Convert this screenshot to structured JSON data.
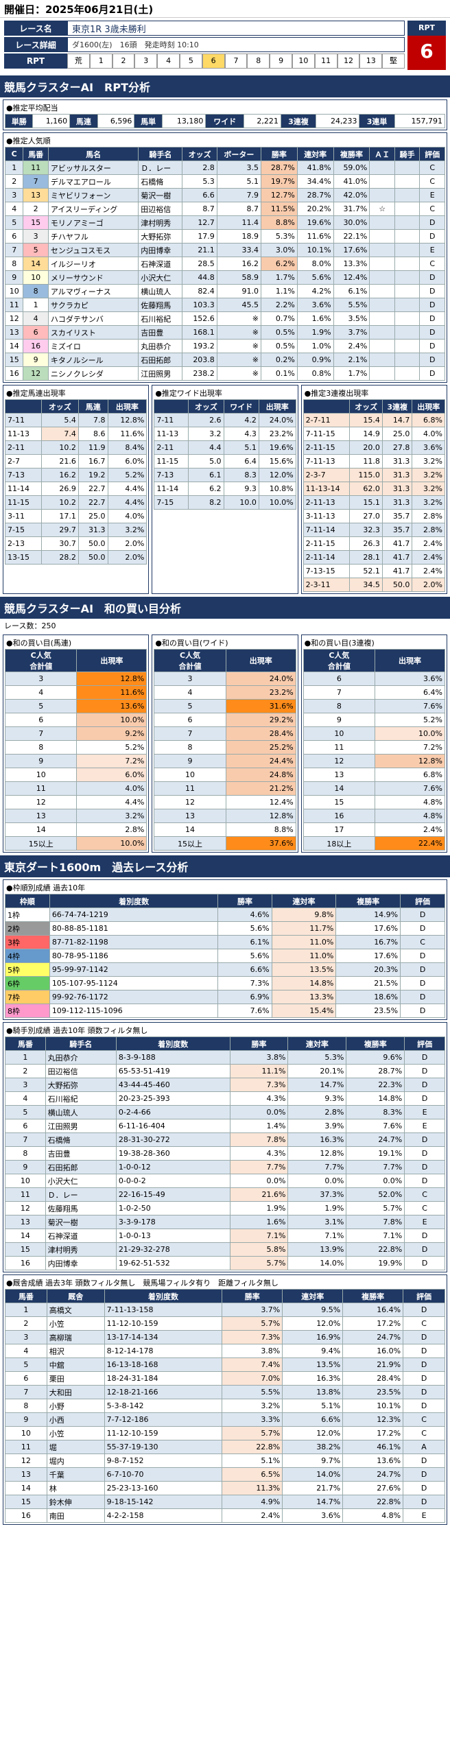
{
  "date": "開催日：2025年06月21日(土)",
  "race": {
    "name_label": "レース名",
    "name": "東京1R 3歳未勝利",
    "detail_label": "レース詳細",
    "detail": "ダ1600(左)　16頭　発走時刻 10:10",
    "rpt_label": "RPT",
    "rpt_cells": [
      "荒",
      "1",
      "2",
      "3",
      "4",
      "5",
      "6",
      "7",
      "8",
      "9",
      "10",
      "11",
      "12",
      "13",
      "堅"
    ],
    "rpt_active": 6,
    "rpt_box_title": "RPT",
    "rpt_value": "6"
  },
  "sec1": "競馬クラスターAI　RPT分析",
  "payout": {
    "title": "●推定平均配当",
    "items": [
      [
        "単勝",
        "1,160"
      ],
      [
        "馬連",
        "6,596"
      ],
      [
        "馬単",
        "13,180"
      ],
      [
        "ワイド",
        "2,221"
      ],
      [
        "3連複",
        "24,233"
      ],
      [
        "3連単",
        "157,791"
      ]
    ]
  },
  "pop": {
    "title": "●推定人気順",
    "headers": [
      "C",
      "馬番",
      "馬名",
      "騎手名",
      "オッズ",
      "ボーター",
      "勝率",
      "連対率",
      "複勝率",
      "ＡＩ",
      "騎手",
      "評価"
    ],
    "rows": [
      [
        "1",
        "11",
        "アビッサルスター",
        "Ｄ．レー",
        "2.8",
        "3.5",
        "28.7%",
        "41.8%",
        "59.0%",
        "",
        "",
        "C"
      ],
      [
        "2",
        "7",
        "デルマエアロール",
        "石橋脩",
        "5.3",
        "5.1",
        "19.7%",
        "34.4%",
        "41.0%",
        "",
        "",
        "C"
      ],
      [
        "3",
        "13",
        "ミヤビリフォーン",
        "菊沢一樹",
        "6.6",
        "7.9",
        "12.7%",
        "28.7%",
        "42.0%",
        "",
        "",
        "E"
      ],
      [
        "4",
        "2",
        "アイスリーディング",
        "田辺裕信",
        "8.7",
        "8.7",
        "11.5%",
        "20.2%",
        "31.7%",
        "☆",
        "",
        "C"
      ],
      [
        "5",
        "15",
        "モリノアミーゴ",
        "津村明秀",
        "12.7",
        "11.4",
        "8.8%",
        "19.6%",
        "30.0%",
        "",
        "",
        "D"
      ],
      [
        "6",
        "3",
        "チハヤフル",
        "大野拓弥",
        "17.9",
        "18.9",
        "5.3%",
        "11.6%",
        "22.1%",
        "",
        "",
        "D"
      ],
      [
        "7",
        "5",
        "センジュコスモス",
        "内田博幸",
        "21.1",
        "33.4",
        "3.0%",
        "10.1%",
        "17.6%",
        "",
        "",
        "E"
      ],
      [
        "8",
        "14",
        "イルジーリオ",
        "石神深道",
        "28.5",
        "16.2",
        "6.2%",
        "8.0%",
        "13.3%",
        "",
        "",
        "C"
      ],
      [
        "9",
        "10",
        "メリーサウンド",
        "小沢大仁",
        "44.8",
        "58.9",
        "1.7%",
        "5.6%",
        "12.4%",
        "",
        "",
        "D"
      ],
      [
        "10",
        "8",
        "アルマヴィーナス",
        "横山琉人",
        "82.4",
        "91.0",
        "1.1%",
        "4.2%",
        "6.1%",
        "",
        "",
        "D"
      ],
      [
        "11",
        "1",
        "サクラカピ",
        "佐藤翔馬",
        "103.3",
        "45.5",
        "2.2%",
        "3.6%",
        "5.5%",
        "",
        "",
        "D"
      ],
      [
        "12",
        "4",
        "ハコダテサンバ",
        "石川裕紀",
        "152.6",
        "※",
        "0.7%",
        "1.6%",
        "3.5%",
        "",
        "",
        "D"
      ],
      [
        "13",
        "6",
        "スカイリスト",
        "吉田豊",
        "168.1",
        "※",
        "0.5%",
        "1.9%",
        "3.7%",
        "",
        "",
        "D"
      ],
      [
        "14",
        "16",
        "ミズイロ",
        "丸田恭介",
        "193.2",
        "※",
        "0.5%",
        "1.0%",
        "2.4%",
        "",
        "",
        "D"
      ],
      [
        "15",
        "9",
        "キタノルシール",
        "石田拓郎",
        "203.8",
        "※",
        "0.2%",
        "0.9%",
        "2.1%",
        "",
        "",
        "D"
      ],
      [
        "16",
        "12",
        "ニシノクレシダ",
        "江田照男",
        "238.2",
        "※",
        "0.1%",
        "0.8%",
        "1.7%",
        "",
        "",
        "D"
      ]
    ]
  },
  "umaren": {
    "title": "●推定馬連出現率",
    "rows": [
      [
        "7-11",
        "5.4",
        "7.8",
        "12.8%"
      ],
      [
        "11-13",
        "7.4",
        "8.6",
        "11.6%"
      ],
      [
        "2-11",
        "10.2",
        "11.9",
        "8.4%"
      ],
      [
        "2-7",
        "21.6",
        "16.7",
        "6.0%"
      ],
      [
        "7-13",
        "16.2",
        "19.2",
        "5.2%"
      ],
      [
        "11-14",
        "26.9",
        "22.7",
        "4.4%"
      ],
      [
        "11-15",
        "10.2",
        "22.7",
        "4.4%"
      ],
      [
        "3-11",
        "17.1",
        "25.0",
        "4.0%"
      ],
      [
        "7-15",
        "29.7",
        "31.3",
        "3.2%"
      ],
      [
        "2-13",
        "30.7",
        "50.0",
        "2.0%"
      ],
      [
        "13-15",
        "28.2",
        "50.0",
        "2.0%"
      ]
    ]
  },
  "wide": {
    "title": "●推定ワイド出現率",
    "rows": [
      [
        "7-11",
        "2.6",
        "4.2",
        "24.0%"
      ],
      [
        "11-13",
        "3.2",
        "4.3",
        "23.2%"
      ],
      [
        "2-11",
        "4.4",
        "5.1",
        "19.6%"
      ],
      [
        "11-15",
        "5.0",
        "6.4",
        "15.6%"
      ],
      [
        "7-13",
        "6.1",
        "8.3",
        "12.0%"
      ],
      [
        "11-14",
        "6.2",
        "9.3",
        "10.8%"
      ],
      [
        "7-15",
        "8.2",
        "10.0",
        "10.0%"
      ]
    ]
  },
  "sanren": {
    "title": "●推定3連複出現率",
    "rows": [
      [
        "2-7-11",
        "15.4",
        "14.7",
        "6.8%"
      ],
      [
        "7-11-15",
        "14.9",
        "25.0",
        "4.0%"
      ],
      [
        "2-11-15",
        "20.0",
        "27.8",
        "3.6%"
      ],
      [
        "7-11-13",
        "11.8",
        "31.3",
        "3.2%"
      ],
      [
        "2-3-7",
        "115.0",
        "31.3",
        "3.2%"
      ],
      [
        "11-13-14",
        "62.0",
        "31.3",
        "3.2%"
      ],
      [
        "2-11-13",
        "15.1",
        "31.3",
        "3.2%"
      ],
      [
        "3-11-13",
        "27.0",
        "35.7",
        "2.8%"
      ],
      [
        "7-11-14",
        "32.3",
        "35.7",
        "2.8%"
      ],
      [
        "2-11-15",
        "26.3",
        "41.7",
        "2.4%"
      ],
      [
        "2-11-14",
        "28.1",
        "41.7",
        "2.4%"
      ],
      [
        "7-13-15",
        "52.1",
        "41.7",
        "2.4%"
      ],
      [
        "2-3-11",
        "34.5",
        "50.0",
        "2.0%"
      ]
    ]
  },
  "sec2": "競馬クラスターAI　和の買い目分析",
  "race_count": "レース数：250",
  "wa": {
    "h1": "C人気\n合計値",
    "h2": "出現率",
    "umaren": {
      "title": "●和の買い目(馬連)",
      "rows": [
        [
          "3",
          "12.8%"
        ],
        [
          "4",
          "11.6%"
        ],
        [
          "5",
          "13.6%"
        ],
        [
          "6",
          "10.0%"
        ],
        [
          "7",
          "9.2%"
        ],
        [
          "8",
          "5.2%"
        ],
        [
          "9",
          "7.2%"
        ],
        [
          "10",
          "6.0%"
        ],
        [
          "11",
          "4.0%"
        ],
        [
          "12",
          "4.4%"
        ],
        [
          "13",
          "3.2%"
        ],
        [
          "14",
          "2.8%"
        ],
        [
          "15以上",
          "10.0%"
        ]
      ]
    },
    "wide": {
      "title": "●和の買い目(ワイド)",
      "rows": [
        [
          "3",
          "24.0%"
        ],
        [
          "4",
          "23.2%"
        ],
        [
          "5",
          "31.6%"
        ],
        [
          "6",
          "29.2%"
        ],
        [
          "7",
          "28.4%"
        ],
        [
          "8",
          "25.2%"
        ],
        [
          "9",
          "24.4%"
        ],
        [
          "10",
          "24.8%"
        ],
        [
          "11",
          "21.2%"
        ],
        [
          "12",
          "12.4%"
        ],
        [
          "13",
          "12.8%"
        ],
        [
          "14",
          "8.8%"
        ],
        [
          "15以上",
          "37.6%"
        ]
      ]
    },
    "sanren": {
      "title": "●和の買い目(3連複)",
      "rows": [
        [
          "6",
          "3.6%"
        ],
        [
          "7",
          "6.4%"
        ],
        [
          "8",
          "7.6%"
        ],
        [
          "9",
          "5.2%"
        ],
        [
          "10",
          "10.0%"
        ],
        [
          "11",
          "7.2%"
        ],
        [
          "12",
          "12.8%"
        ],
        [
          "13",
          "6.8%"
        ],
        [
          "14",
          "7.6%"
        ],
        [
          "15",
          "4.8%"
        ],
        [
          "16",
          "4.8%"
        ],
        [
          "17",
          "2.4%"
        ],
        [
          "18以上",
          "22.4%"
        ]
      ]
    }
  },
  "sec3": "東京ダート1600m　過去レース分析",
  "waku": {
    "title": "●枠順別成績 過去10年",
    "headers": [
      "枠順",
      "着別度数",
      "勝率",
      "連対率",
      "複勝率",
      "評価"
    ],
    "rows": [
      [
        "1枠",
        "66-74-74-1219",
        "4.6%",
        "9.8%",
        "14.9%",
        "D"
      ],
      [
        "2枠",
        "80-88-85-1181",
        "5.6%",
        "11.7%",
        "17.6%",
        "D"
      ],
      [
        "3枠",
        "87-71-82-1198",
        "6.1%",
        "11.0%",
        "16.7%",
        "C"
      ],
      [
        "4枠",
        "80-78-95-1186",
        "5.6%",
        "11.0%",
        "17.6%",
        "D"
      ],
      [
        "5枠",
        "95-99-97-1142",
        "6.6%",
        "13.5%",
        "20.3%",
        "D"
      ],
      [
        "6枠",
        "105-107-95-1124",
        "7.3%",
        "14.8%",
        "21.5%",
        "D"
      ],
      [
        "7枠",
        "99-92-76-1172",
        "6.9%",
        "13.3%",
        "18.6%",
        "D"
      ],
      [
        "8枠",
        "109-112-115-1096",
        "7.6%",
        "15.4%",
        "23.5%",
        "D"
      ]
    ]
  },
  "jockey": {
    "title": "●騎手別成績 過去10年 頭数フィルタ無し",
    "headers": [
      "馬番",
      "騎手名",
      "着別度数",
      "勝率",
      "連対率",
      "複勝率",
      "評価"
    ],
    "rows": [
      [
        "1",
        "丸田恭介",
        "8-3-9-188",
        "3.8%",
        "5.3%",
        "9.6%",
        "D"
      ],
      [
        "2",
        "田辺裕信",
        "65-53-51-419",
        "11.1%",
        "20.1%",
        "28.7%",
        "D"
      ],
      [
        "3",
        "大野拓弥",
        "43-44-45-460",
        "7.3%",
        "14.7%",
        "22.3%",
        "D"
      ],
      [
        "4",
        "石川裕紀",
        "20-23-25-393",
        "4.3%",
        "9.3%",
        "14.8%",
        "D"
      ],
      [
        "5",
        "横山琉人",
        "0-2-4-66",
        "0.0%",
        "2.8%",
        "8.3%",
        "E"
      ],
      [
        "6",
        "江田照男",
        "6-11-16-404",
        "1.4%",
        "3.9%",
        "7.6%",
        "E"
      ],
      [
        "7",
        "石橋脩",
        "28-31-30-272",
        "7.8%",
        "16.3%",
        "24.7%",
        "D"
      ],
      [
        "8",
        "吉田豊",
        "19-38-28-360",
        "4.3%",
        "12.8%",
        "19.1%",
        "D"
      ],
      [
        "9",
        "石田拓郎",
        "1-0-0-12",
        "7.7%",
        "7.7%",
        "7.7%",
        "D"
      ],
      [
        "10",
        "小沢大仁",
        "0-0-0-2",
        "0.0%",
        "0.0%",
        "0.0%",
        "D"
      ],
      [
        "11",
        "Ｄ．レー",
        "22-16-15-49",
        "21.6%",
        "37.3%",
        "52.0%",
        "C"
      ],
      [
        "12",
        "佐藤翔馬",
        "1-0-2-50",
        "1.9%",
        "1.9%",
        "5.7%",
        "C"
      ],
      [
        "13",
        "菊沢一樹",
        "3-3-9-178",
        "1.6%",
        "3.1%",
        "7.8%",
        "E"
      ],
      [
        "14",
        "石神深道",
        "1-0-0-13",
        "7.1%",
        "7.1%",
        "7.1%",
        "D"
      ],
      [
        "15",
        "津村明秀",
        "21-29-32-278",
        "5.8%",
        "13.9%",
        "22.8%",
        "D"
      ],
      [
        "16",
        "内田博幸",
        "19-62-51-532",
        "5.7%",
        "14.0%",
        "19.9%",
        "D"
      ]
    ]
  },
  "trainer": {
    "title": "●厩舎成績 過去3年 頭数フィルタ無し　競馬場フィルタ有り　距離フィルタ無し",
    "headers": [
      "馬番",
      "厩舎",
      "着別度数",
      "勝率",
      "連対率",
      "複勝率",
      "評価"
    ],
    "rows": [
      [
        "1",
        "高橋文",
        "7-11-13-158",
        "3.7%",
        "9.5%",
        "16.4%",
        "D"
      ],
      [
        "2",
        "小笠",
        "11-12-10-159",
        "5.7%",
        "12.0%",
        "17.2%",
        "C"
      ],
      [
        "3",
        "高柳瑞",
        "13-17-14-134",
        "7.3%",
        "16.9%",
        "24.7%",
        "D"
      ],
      [
        "4",
        "相沢",
        "8-12-14-178",
        "3.8%",
        "9.4%",
        "16.0%",
        "D"
      ],
      [
        "5",
        "中舘",
        "16-13-18-168",
        "7.4%",
        "13.5%",
        "21.9%",
        "D"
      ],
      [
        "6",
        "栗田",
        "18-24-31-184",
        "7.0%",
        "16.3%",
        "28.4%",
        "D"
      ],
      [
        "7",
        "大和田",
        "12-18-21-166",
        "5.5%",
        "13.8%",
        "23.5%",
        "D"
      ],
      [
        "8",
        "小野",
        "5-3-8-142",
        "3.2%",
        "5.1%",
        "10.1%",
        "D"
      ],
      [
        "9",
        "小西",
        "7-7-12-186",
        "3.3%",
        "6.6%",
        "12.3%",
        "C"
      ],
      [
        "10",
        "小笠",
        "11-12-10-159",
        "5.7%",
        "12.0%",
        "17.2%",
        "C"
      ],
      [
        "11",
        "堀",
        "55-37-19-130",
        "22.8%",
        "38.2%",
        "46.1%",
        "A"
      ],
      [
        "12",
        "堀内",
        "9-8-7-152",
        "5.1%",
        "9.7%",
        "13.6%",
        "D"
      ],
      [
        "13",
        "千葉",
        "6-7-10-70",
        "6.5%",
        "14.0%",
        "24.7%",
        "D"
      ],
      [
        "14",
        "林",
        "25-23-13-160",
        "11.3%",
        "21.7%",
        "27.6%",
        "D"
      ],
      [
        "15",
        "鈴木伸",
        "9-18-15-142",
        "4.9%",
        "14.7%",
        "22.8%",
        "D"
      ],
      [
        "16",
        "南田",
        "4-2-2-158",
        "2.4%",
        "3.6%",
        "4.8%",
        "E"
      ]
    ]
  },
  "colors": {
    "navy": "#1f3864",
    "red": "#c00000",
    "orange": "#ff8c1a",
    "peach": "#f8cbad",
    "light": "#dce6f1"
  }
}
